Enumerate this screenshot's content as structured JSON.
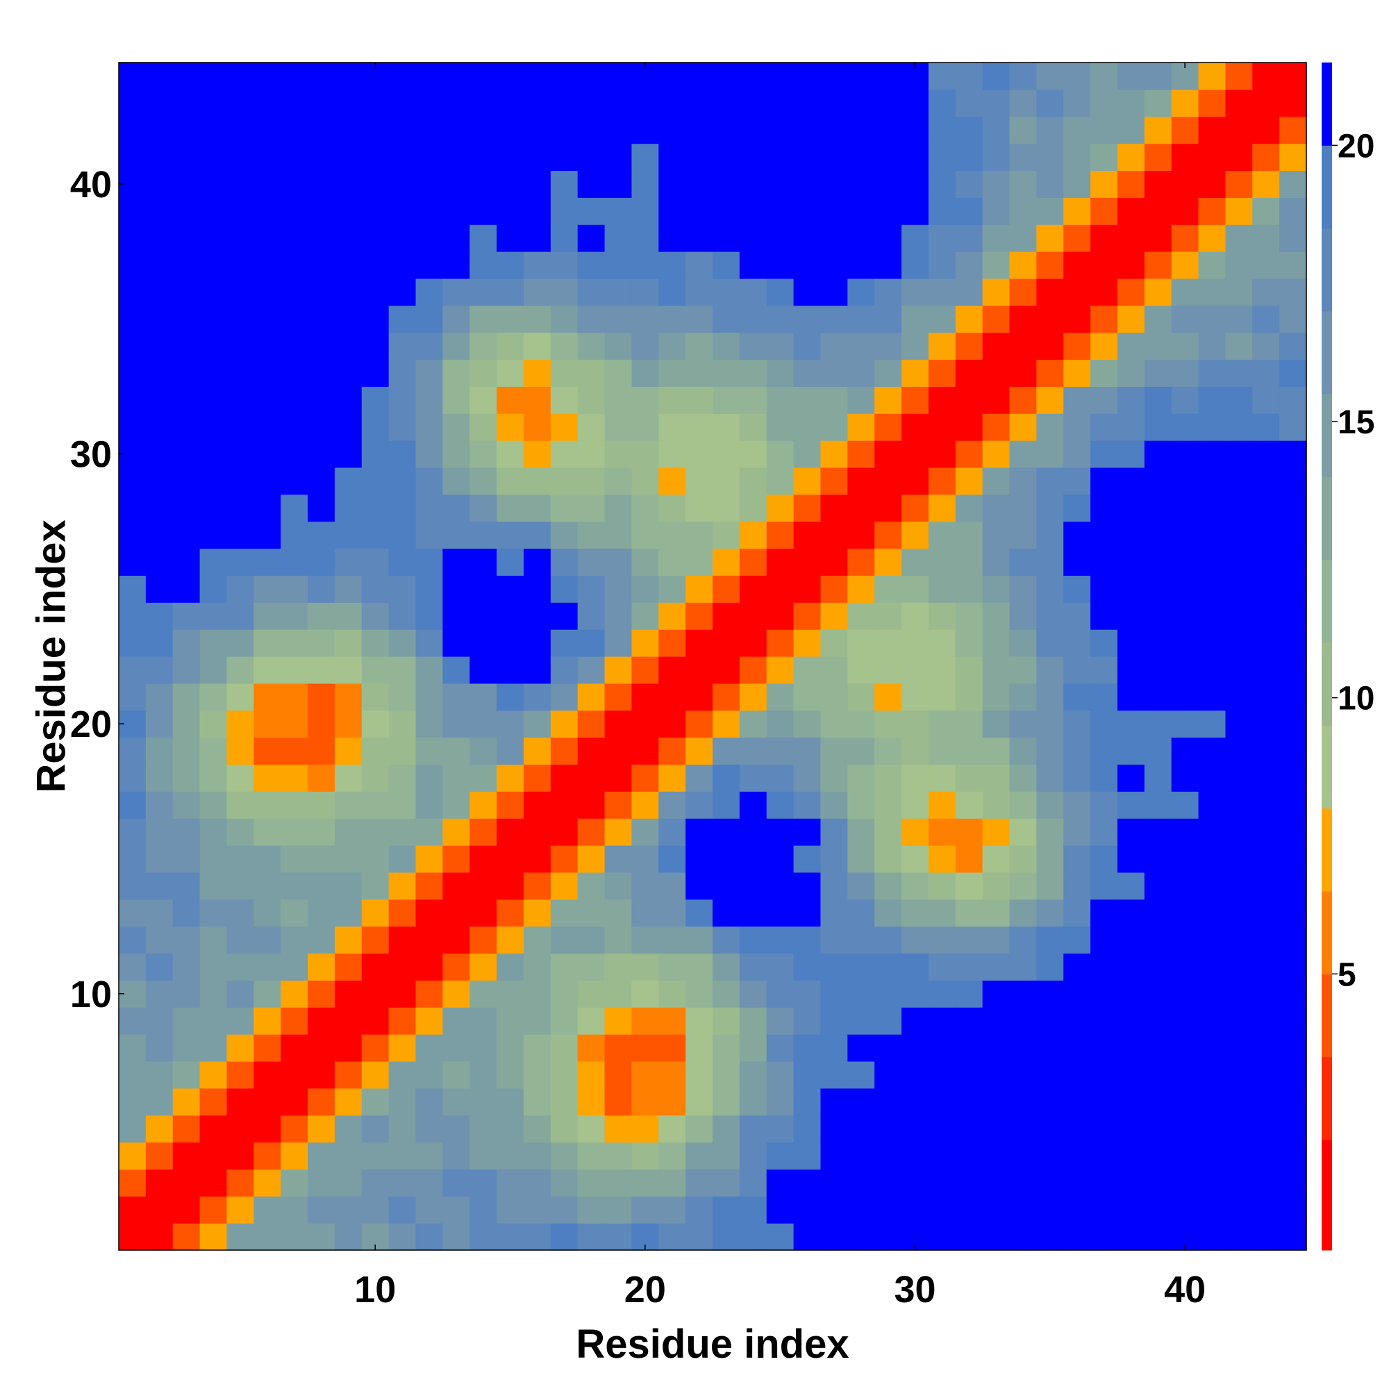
{
  "chart_data": {
    "type": "heatmap",
    "title": "",
    "xlabel": "Residue index",
    "ylabel": "Residue index",
    "n": 44,
    "xlim": [
      0.5,
      44.5
    ],
    "ylim": [
      0.5,
      44.5
    ],
    "x_ticks": [
      10,
      20,
      30,
      40
    ],
    "y_ticks": [
      10,
      20,
      30,
      40
    ],
    "x_tick_labels": [
      "10",
      "20",
      "30",
      "40"
    ],
    "y_tick_labels": [
      "10",
      "20",
      "30",
      "40"
    ],
    "colorbar": {
      "range": [
        0,
        21.5
      ],
      "ticks": [
        5,
        10,
        15,
        20
      ],
      "tick_labels": [
        "5",
        "10",
        "15",
        "20"
      ],
      "boundaries": [
        0,
        2,
        3.5,
        5,
        6.5,
        8,
        9.5,
        11,
        12.5,
        14,
        15.5,
        17,
        18.5,
        20,
        21.5
      ],
      "colors": [
        "#ff0000",
        "#ff2a00",
        "#ff5500",
        "#ff8000",
        "#ffa500",
        "#a6c28d",
        "#9bbb8f",
        "#93b596",
        "#86a89c",
        "#7b9ea5",
        "#6e92b0",
        "#5e87bb",
        "#4d7fc2",
        "#0000ff"
      ]
    },
    "pattern": "symmetric residue distance map; contact band along diagonal; off-diagonal contact stripes near (4-12,17-25), (15-24,2-12), (16-23,26-36), (26-34,13-20), (12-19,29-36); blue (>20) regions in corners and near (13-17,22-26), (23-27,13-17)"
  }
}
